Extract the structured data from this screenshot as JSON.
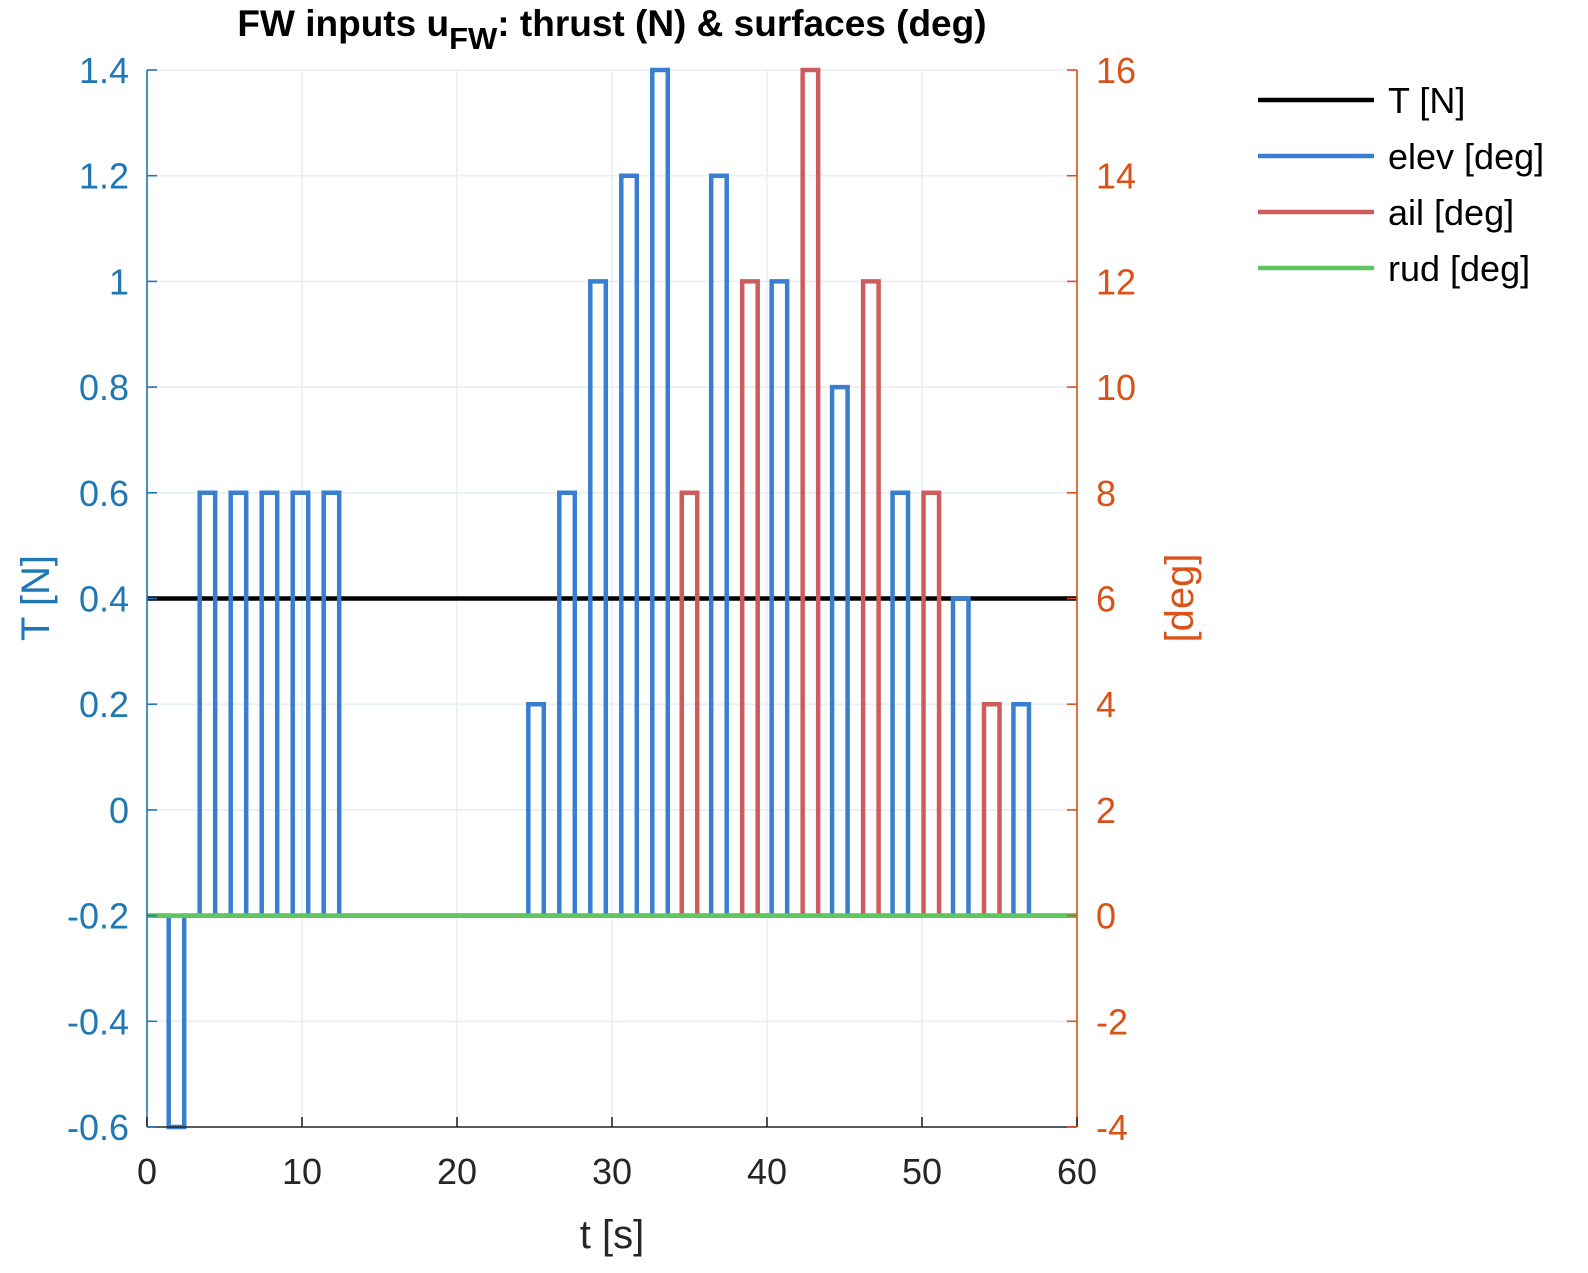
{
  "chart_data": {
    "type": "line",
    "title": {
      "prefix": "FW inputs u",
      "subscript": "FW",
      "suffix": ": thrust (N) & surfaces (deg)"
    },
    "xlabel": "t [s]",
    "ylabel_left": "T [N]",
    "ylabel_right": "[deg]",
    "xlim": [
      0,
      60
    ],
    "ylim_left": [
      -0.6,
      1.4
    ],
    "ylim_right": [
      -4,
      16
    ],
    "x_ticks": [
      "0",
      "10",
      "20",
      "30",
      "40",
      "50",
      "60"
    ],
    "y_left_ticks": [
      "-0.6",
      "-0.4",
      "-0.2",
      "0",
      "0.2",
      "0.4",
      "0.6",
      "0.8",
      "1",
      "1.2",
      "1.4"
    ],
    "y_right_ticks": [
      "-4",
      "-2",
      "0",
      "2",
      "4",
      "6",
      "8",
      "10",
      "12",
      "14",
      "16"
    ],
    "grid": true,
    "legend_position": "outside-top-right",
    "colors": {
      "left_axis": "#1f77b4",
      "right_axis": "#d95319"
    },
    "series": [
      {
        "name": "T [N]",
        "axis": "left",
        "color": "#000000",
        "x": [
          0,
          60
        ],
        "y": [
          0.4,
          0.4
        ]
      },
      {
        "name": "elev [deg]",
        "axis": "right",
        "color": "#3a7fcf",
        "x": [
          0,
          1.4,
          1.4,
          2.4,
          2.4,
          3.4,
          3.4,
          4.4,
          4.4,
          5.4,
          5.4,
          6.4,
          6.4,
          7.4,
          7.4,
          8.4,
          8.4,
          9.4,
          9.4,
          10.4,
          10.4,
          11.4,
          11.4,
          12.4,
          12.4,
          24.6,
          24.6,
          25.6,
          25.6,
          26.6,
          26.6,
          27.6,
          27.6,
          28.6,
          28.6,
          29.6,
          29.6,
          30.6,
          30.6,
          31.6,
          31.6,
          32.6,
          32.6,
          33.6,
          33.6,
          36.4,
          36.4,
          37.4,
          37.4,
          40.3,
          40.3,
          41.3,
          41.3,
          44.2,
          44.2,
          45.2,
          45.2,
          48.1,
          48.1,
          49.1,
          49.1,
          52.0,
          52.0,
          53.0,
          53.0,
          55.9,
          55.9,
          56.9,
          56.9,
          60
        ],
        "y": [
          0,
          0,
          -4,
          -4,
          0,
          0,
          8,
          8,
          0,
          0,
          8,
          8,
          0,
          0,
          8,
          8,
          0,
          0,
          8,
          8,
          0,
          0,
          8,
          8,
          0,
          0,
          4,
          4,
          0,
          0,
          8,
          8,
          0,
          0,
          12,
          12,
          0,
          0,
          14,
          14,
          0,
          0,
          16,
          16,
          0,
          0,
          14,
          14,
          0,
          0,
          12,
          12,
          0,
          0,
          10,
          10,
          0,
          0,
          8,
          8,
          0,
          0,
          6,
          6,
          0,
          0,
          4,
          4,
          0,
          0
        ]
      },
      {
        "name": "ail [deg]",
        "axis": "right",
        "color": "#cf5c5c",
        "x": [
          0,
          34.5,
          34.5,
          35.5,
          35.5,
          38.4,
          38.4,
          39.4,
          39.4,
          42.3,
          42.3,
          43.3,
          43.3,
          46.2,
          46.2,
          47.2,
          47.2,
          50.1,
          50.1,
          51.1,
          51.1,
          54.0,
          54.0,
          55.0,
          55.0,
          60
        ],
        "y": [
          0,
          0,
          8,
          8,
          0,
          0,
          12,
          12,
          0,
          0,
          16,
          16,
          0,
          0,
          12,
          12,
          0,
          0,
          8,
          8,
          0,
          0,
          4,
          4,
          0,
          0
        ]
      },
      {
        "name": "rud [deg]",
        "axis": "right",
        "color": "#5fc75f",
        "x": [
          0,
          60
        ],
        "y": [
          0,
          0
        ]
      }
    ]
  }
}
